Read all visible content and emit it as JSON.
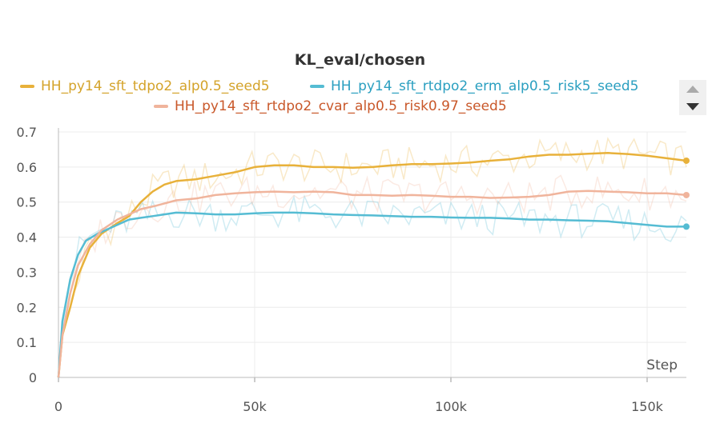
{
  "chart_data": {
    "type": "line",
    "title": "KL_eval/chosen",
    "xlabel": "Step",
    "ylabel": "",
    "xlim": [
      0,
      160000
    ],
    "ylim": [
      0,
      0.7
    ],
    "xticks": [
      0,
      50000,
      100000,
      150000
    ],
    "xtick_labels": [
      "0",
      "50k",
      "100k",
      "150k"
    ],
    "yticks": [
      0,
      0.1,
      0.2,
      0.3,
      0.4,
      0.5,
      0.6,
      0.7
    ],
    "ytick_labels": [
      "0",
      "0.1",
      "0.2",
      "0.3",
      "0.4",
      "0.5",
      "0.6",
      "0.7"
    ],
    "grid": true,
    "legend_position": "top",
    "series": [
      {
        "name": "HH_py14_sft_tdpo2_alp0.5_seed5",
        "color": "#e8b13a",
        "x": [
          0,
          1000,
          3000,
          5000,
          8000,
          11000,
          15000,
          18000,
          21000,
          24000,
          27000,
          30000,
          35000,
          40000,
          45000,
          50000,
          55000,
          60000,
          65000,
          70000,
          75000,
          80000,
          85000,
          90000,
          95000,
          100000,
          105000,
          110000,
          115000,
          120000,
          125000,
          130000,
          135000,
          140000,
          145000,
          150000,
          155000,
          160000
        ],
        "values": [
          0,
          0.12,
          0.2,
          0.29,
          0.37,
          0.41,
          0.44,
          0.46,
          0.5,
          0.53,
          0.55,
          0.56,
          0.565,
          0.575,
          0.585,
          0.6,
          0.605,
          0.605,
          0.6,
          0.6,
          0.598,
          0.6,
          0.605,
          0.608,
          0.608,
          0.61,
          0.613,
          0.618,
          0.622,
          0.63,
          0.635,
          0.635,
          0.638,
          0.64,
          0.637,
          0.632,
          0.625,
          0.618
        ]
      },
      {
        "name": "HH_py14_sft_rtdpo2_erm_alp0.5_risk5_seed5",
        "color": "#55bcd3",
        "x": [
          0,
          1000,
          3000,
          5000,
          7000,
          10000,
          13000,
          16000,
          18000,
          21000,
          24000,
          27000,
          30000,
          35000,
          40000,
          45000,
          50000,
          55000,
          60000,
          65000,
          70000,
          75000,
          80000,
          85000,
          90000,
          95000,
          100000,
          105000,
          110000,
          115000,
          120000,
          125000,
          130000,
          135000,
          140000,
          145000,
          150000,
          155000,
          160000
        ],
        "values": [
          0,
          0.16,
          0.28,
          0.35,
          0.39,
          0.41,
          0.425,
          0.44,
          0.45,
          0.455,
          0.46,
          0.465,
          0.47,
          0.468,
          0.465,
          0.465,
          0.468,
          0.47,
          0.47,
          0.468,
          0.465,
          0.463,
          0.462,
          0.46,
          0.458,
          0.458,
          0.456,
          0.455,
          0.455,
          0.453,
          0.45,
          0.45,
          0.448,
          0.447,
          0.445,
          0.44,
          0.435,
          0.43,
          0.43
        ]
      },
      {
        "name": "HH_py14_sft_rtdpo2_cvar_alp0.5_risk0.97_seed5",
        "color": "#f0b49c",
        "x": [
          0,
          1000,
          3000,
          5000,
          8000,
          11000,
          15000,
          18000,
          21000,
          25000,
          30000,
          35000,
          40000,
          45000,
          50000,
          55000,
          60000,
          65000,
          70000,
          75000,
          80000,
          85000,
          90000,
          95000,
          100000,
          105000,
          110000,
          115000,
          120000,
          125000,
          130000,
          135000,
          140000,
          145000,
          150000,
          155000,
          160000
        ],
        "values": [
          0,
          0.12,
          0.24,
          0.32,
          0.38,
          0.42,
          0.45,
          0.465,
          0.48,
          0.49,
          0.505,
          0.51,
          0.52,
          0.525,
          0.528,
          0.53,
          0.528,
          0.53,
          0.528,
          0.52,
          0.52,
          0.518,
          0.52,
          0.518,
          0.515,
          0.515,
          0.512,
          0.513,
          0.515,
          0.52,
          0.53,
          0.532,
          0.53,
          0.528,
          0.525,
          0.525,
          0.52
        ]
      }
    ]
  }
}
